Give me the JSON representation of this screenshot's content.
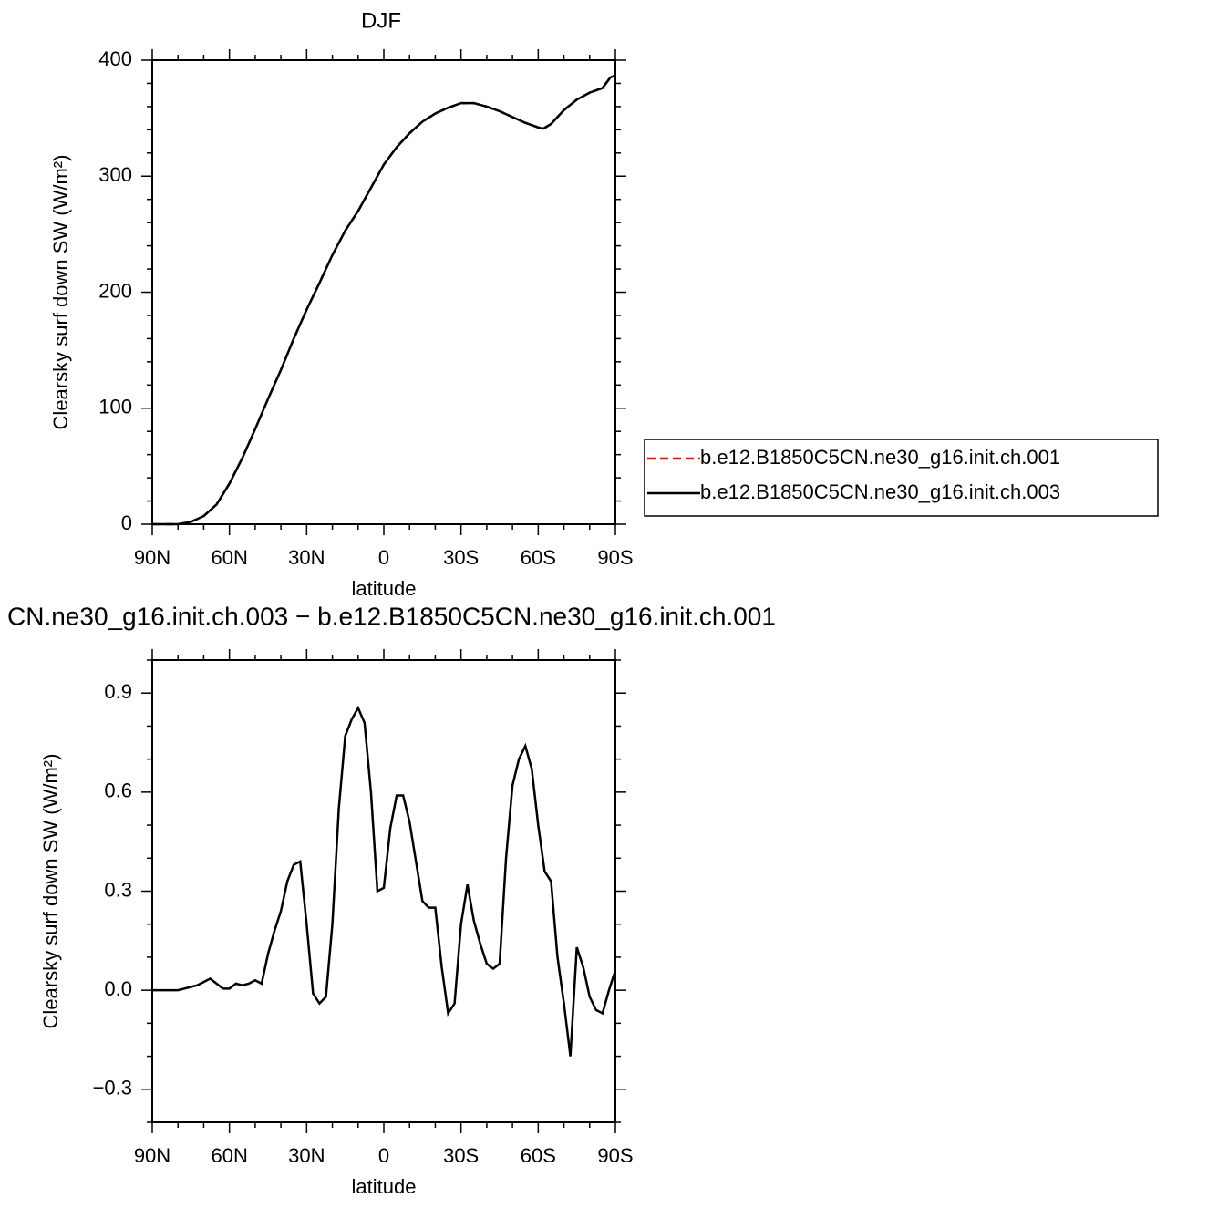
{
  "chart_data": [
    {
      "type": "line",
      "title": "DJF",
      "xlabel": "latitude",
      "ylabel": "Clearsky surf down SW (W/m²)",
      "x": [
        90,
        85,
        80,
        75,
        70,
        65,
        60,
        55,
        50,
        45,
        40,
        35,
        30,
        25,
        20,
        15,
        10,
        5,
        0,
        -5,
        -10,
        -15,
        -20,
        -25,
        -30,
        -35,
        -40,
        -45,
        -50,
        -55,
        -60,
        -62,
        -65,
        -70,
        -75,
        -80,
        -85,
        -88,
        -90
      ],
      "series": [
        {
          "name": "b.e12.B1850C5CN.ne30_g16.init.ch.001",
          "color": "#ff0000",
          "linestyle": "dashed",
          "values": [
            0,
            0,
            0,
            2,
            7,
            17,
            35,
            57,
            82,
            108,
            133,
            160,
            185,
            208,
            232,
            253,
            270,
            290,
            310,
            325,
            337,
            347,
            354,
            359,
            363,
            363,
            360,
            356,
            351,
            346,
            342,
            341,
            345,
            357,
            366,
            372,
            376,
            385,
            387
          ]
        },
        {
          "name": "b.e12.B1850C5CN.ne30_g16.init.ch.003",
          "color": "#000000",
          "linestyle": "solid",
          "values": [
            0,
            0,
            0,
            2,
            7,
            17,
            35,
            57,
            82,
            108,
            133,
            160,
            185,
            208,
            232,
            253,
            270,
            290,
            310,
            325,
            337,
            347,
            354,
            359,
            363,
            363,
            360,
            356,
            351,
            346,
            342,
            341,
            345,
            357,
            366,
            372,
            376,
            385,
            387
          ]
        }
      ],
      "xlim": [
        90,
        -90
      ],
      "xticks": [
        {
          "value": 90,
          "label": "90N"
        },
        {
          "value": 60,
          "label": "60N"
        },
        {
          "value": 30,
          "label": "30N"
        },
        0,
        {
          "value": -30,
          "label": "30S"
        },
        {
          "value": -60,
          "label": "60S"
        },
        {
          "value": -90,
          "label": "90S"
        }
      ],
      "minor_xticks": [
        80,
        70,
        50,
        40,
        20,
        10,
        -10,
        -20,
        -40,
        -50,
        -70,
        -80
      ],
      "ylim": [
        0,
        400
      ],
      "yticks": [
        0,
        100,
        200,
        300,
        400
      ],
      "minor_yticks": [
        20,
        40,
        60,
        80,
        120,
        140,
        160,
        180,
        220,
        240,
        260,
        280,
        320,
        340,
        360,
        380
      ],
      "legend": "right"
    },
    {
      "type": "line",
      "title": "CN.ne30_g16.init.ch.003 − b.e12.B1850C5CN.ne30_g16.init.ch.001",
      "xlabel": "latitude",
      "ylabel": "Clearsky surf down SW (W/m²)",
      "x": [
        90,
        87.5,
        85,
        82.5,
        80,
        77.5,
        75,
        72.5,
        70,
        67.5,
        65,
        62.5,
        60,
        57.5,
        55,
        52.5,
        50,
        47.5,
        45,
        42.5,
        40,
        37.5,
        35,
        32.5,
        30,
        27.5,
        25,
        22.5,
        20,
        17.5,
        15,
        12.5,
        10,
        7.5,
        5,
        2.5,
        0,
        -2.5,
        -5,
        -7.5,
        -10,
        -12.5,
        -15,
        -17.5,
        -20,
        -22.5,
        -25,
        -27.5,
        -30,
        -32.5,
        -35,
        -37.5,
        -40,
        -42.5,
        -45,
        -47.5,
        -50,
        -52.5,
        -55,
        -57.5,
        -60,
        -62.5,
        -65,
        -67.5,
        -70,
        -72.5,
        -75,
        -77.5,
        -80,
        -82.5,
        -85,
        -87.5,
        -90
      ],
      "series": [
        {
          "color": "#000000",
          "linestyle": "solid",
          "values": [
            0,
            0,
            0,
            0,
            0,
            0.005,
            0.01,
            0.015,
            0.025,
            0.035,
            0.02,
            0.005,
            0.005,
            0.02,
            0.015,
            0.02,
            0.03,
            0.02,
            0.11,
            0.18,
            0.24,
            0.33,
            0.38,
            0.39,
            0.2,
            -0.01,
            -0.04,
            -0.02,
            0.2,
            0.55,
            0.77,
            0.82,
            0.855,
            0.81,
            0.6,
            0.3,
            0.31,
            0.49,
            0.59,
            0.59,
            0.51,
            0.39,
            0.27,
            0.25,
            0.25,
            0.07,
            -0.07,
            -0.04,
            0.2,
            0.32,
            0.21,
            0.14,
            0.08,
            0.065,
            0.08,
            0.4,
            0.62,
            0.7,
            0.74,
            0.67,
            0.5,
            0.36,
            0.33,
            0.1,
            -0.04,
            -0.2,
            0.13,
            0.07,
            -0.02,
            -0.06,
            -0.07,
            0,
            0.06
          ]
        }
      ],
      "xlim": [
        90,
        -90
      ],
      "xticks": [
        {
          "value": 90,
          "label": "90N"
        },
        {
          "value": 60,
          "label": "60N"
        },
        {
          "value": 30,
          "label": "30N"
        },
        0,
        {
          "value": -30,
          "label": "30S"
        },
        {
          "value": -60,
          "label": "60S"
        },
        {
          "value": -90,
          "label": "90S"
        }
      ],
      "minor_xticks": [
        80,
        70,
        50,
        40,
        20,
        10,
        -10,
        -20,
        -40,
        -50,
        -70,
        -80
      ],
      "ylim": [
        -0.4,
        1.0
      ],
      "yticks": [
        {
          "value": -0.3,
          "label": "−0.3"
        },
        {
          "value": 0,
          "label": "0.0"
        },
        0.3,
        0.6,
        0.9
      ],
      "minor_yticks": [
        -0.4,
        -0.2,
        -0.1,
        0.1,
        0.2,
        0.4,
        0.5,
        0.7,
        0.8,
        1.0
      ]
    }
  ]
}
